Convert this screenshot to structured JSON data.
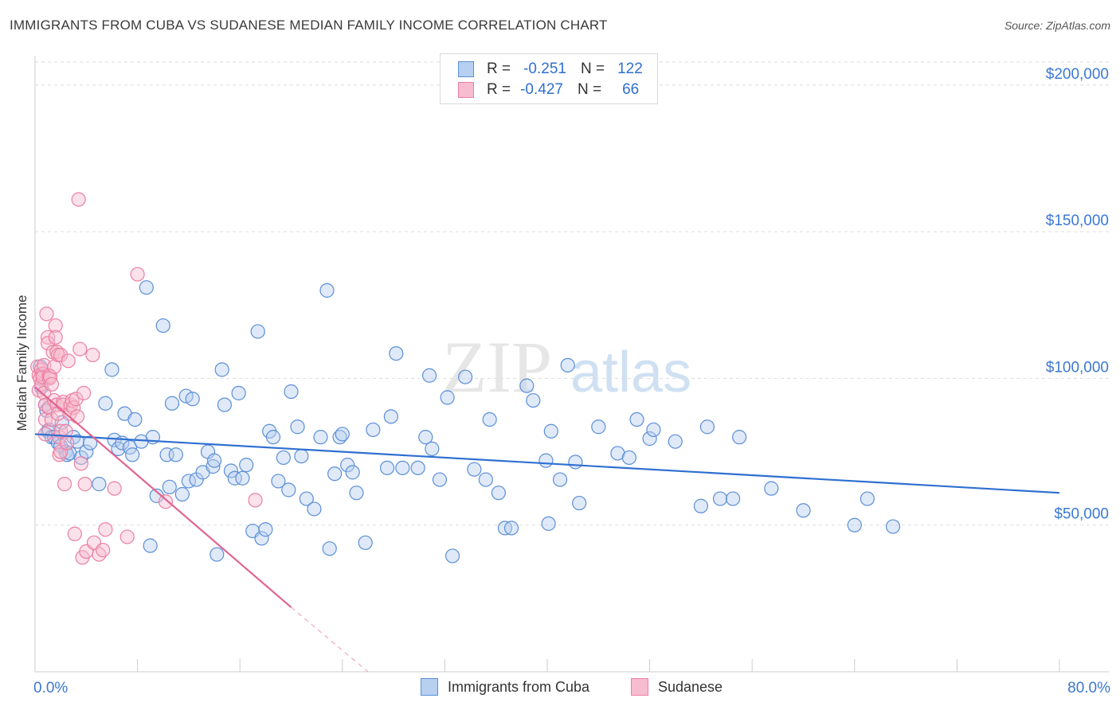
{
  "title": "IMMIGRANTS FROM CUBA VS SUDANESE MEDIAN FAMILY INCOME CORRELATION CHART",
  "source": "Source: ZipAtlas.com",
  "watermark": {
    "zip": "ZIP",
    "atlas": "atlas"
  },
  "legend": {
    "rows": [
      {
        "r_label": "R =",
        "r_value": "-0.251",
        "n_label": "N =",
        "n_value": "122",
        "color": "#5b8fd8"
      },
      {
        "r_label": "R =",
        "r_value": "-0.427",
        "n_label": "N =",
        "n_value": "66",
        "color": "#ec7fa3"
      }
    ]
  },
  "bottom_legend": {
    "cuba": "Immigrants from Cuba",
    "sudanese": "Sudanese"
  },
  "colors": {
    "cuba_fill": "#b7cff0",
    "cuba_stroke": "#5b8fd8",
    "cuba_line": "#2f6fd1",
    "sud_fill": "#f7bccf",
    "sud_stroke": "#ec7fa3",
    "sud_line": "#e0648e",
    "axis_label": "#3b78d4",
    "grid": "#dddddd"
  },
  "chart_data": {
    "type": "scatter",
    "title": "IMMIGRANTS FROM CUBA VS SUDANESE MEDIAN FAMILY INCOME CORRELATION CHART",
    "xlabel": "",
    "ylabel": "Median Family Income",
    "xlim": [
      0,
      80
    ],
    "ylim": [
      0,
      210000
    ],
    "x_tick_labels": [
      "0.0%",
      "80.0%"
    ],
    "y_ticks": [
      50000,
      100000,
      150000,
      200000
    ],
    "y_tick_labels": [
      "$50,000",
      "$100,000",
      "$150,000",
      "$200,000"
    ],
    "series": [
      {
        "name": "Immigrants from Cuba",
        "R": -0.251,
        "N": 122,
        "trend": {
          "x": [
            0,
            80
          ],
          "y": [
            81000,
            61000
          ]
        },
        "points": [
          [
            0.4,
            104000
          ],
          [
            0.5,
            97000
          ],
          [
            0.8,
            91000
          ],
          [
            0.9,
            89000
          ],
          [
            1.0,
            82000
          ],
          [
            1.1,
            82500
          ],
          [
            1.3,
            80000
          ],
          [
            1.5,
            80000
          ],
          [
            1.8,
            78000
          ],
          [
            2.0,
            77000
          ],
          [
            2.1,
            85000
          ],
          [
            2.4,
            75000
          ],
          [
            2.5,
            74000
          ],
          [
            2.7,
            74500
          ],
          [
            3.0,
            80000
          ],
          [
            3.3,
            78500
          ],
          [
            3.6,
            73000
          ],
          [
            4.0,
            75000
          ],
          [
            4.3,
            78000
          ],
          [
            5.0,
            64000
          ],
          [
            5.5,
            91500
          ],
          [
            6.0,
            103000
          ],
          [
            6.2,
            79000
          ],
          [
            6.5,
            76000
          ],
          [
            6.8,
            78000
          ],
          [
            7.0,
            88000
          ],
          [
            7.4,
            76500
          ],
          [
            7.6,
            74000
          ],
          [
            7.8,
            86000
          ],
          [
            8.3,
            78500
          ],
          [
            8.7,
            131000
          ],
          [
            9.0,
            43000
          ],
          [
            9.2,
            80000
          ],
          [
            9.5,
            60000
          ],
          [
            10.0,
            118000
          ],
          [
            10.3,
            74000
          ],
          [
            10.5,
            63000
          ],
          [
            10.7,
            91500
          ],
          [
            11.0,
            74000
          ],
          [
            11.5,
            60500
          ],
          [
            11.8,
            94000
          ],
          [
            12.0,
            65000
          ],
          [
            12.3,
            93000
          ],
          [
            12.6,
            65500
          ],
          [
            13.1,
            68000
          ],
          [
            13.5,
            75000
          ],
          [
            13.9,
            70000
          ],
          [
            14.0,
            72000
          ],
          [
            14.2,
            40000
          ],
          [
            14.6,
            103000
          ],
          [
            14.8,
            91000
          ],
          [
            15.3,
            68500
          ],
          [
            15.6,
            66000
          ],
          [
            15.9,
            95000
          ],
          [
            16.2,
            66000
          ],
          [
            16.5,
            70500
          ],
          [
            17.0,
            48000
          ],
          [
            17.4,
            116000
          ],
          [
            17.7,
            45500
          ],
          [
            18.0,
            48500
          ],
          [
            18.3,
            82000
          ],
          [
            18.6,
            80000
          ],
          [
            19.0,
            65000
          ],
          [
            19.4,
            73000
          ],
          [
            19.8,
            62000
          ],
          [
            20.0,
            95500
          ],
          [
            20.5,
            83500
          ],
          [
            20.8,
            73500
          ],
          [
            21.2,
            59000
          ],
          [
            21.8,
            55500
          ],
          [
            22.3,
            80000
          ],
          [
            22.8,
            130000
          ],
          [
            23.0,
            42000
          ],
          [
            23.4,
            67500
          ],
          [
            23.8,
            80000
          ],
          [
            24.0,
            81000
          ],
          [
            24.4,
            70500
          ],
          [
            24.8,
            68000
          ],
          [
            25.1,
            61000
          ],
          [
            25.8,
            44000
          ],
          [
            26.4,
            82500
          ],
          [
            27.5,
            69500
          ],
          [
            27.8,
            87000
          ],
          [
            28.2,
            108500
          ],
          [
            28.7,
            69500
          ],
          [
            29.9,
            69500
          ],
          [
            30.5,
            80000
          ],
          [
            30.8,
            101000
          ],
          [
            31.0,
            76000
          ],
          [
            31.6,
            65500
          ],
          [
            32.2,
            93500
          ],
          [
            32.6,
            39500
          ],
          [
            33.6,
            100500
          ],
          [
            34.3,
            69000
          ],
          [
            35.2,
            65500
          ],
          [
            35.5,
            86000
          ],
          [
            36.2,
            61000
          ],
          [
            36.7,
            49000
          ],
          [
            37.2,
            49000
          ],
          [
            38.4,
            97500
          ],
          [
            38.9,
            92500
          ],
          [
            39.9,
            72000
          ],
          [
            40.1,
            50500
          ],
          [
            40.3,
            82000
          ],
          [
            41.0,
            65500
          ],
          [
            41.6,
            104500
          ],
          [
            42.2,
            71500
          ],
          [
            42.5,
            57500
          ],
          [
            44.0,
            83500
          ],
          [
            45.5,
            74500
          ],
          [
            46.4,
            73000
          ],
          [
            47.0,
            86000
          ],
          [
            48.0,
            79500
          ],
          [
            48.3,
            82500
          ],
          [
            50.0,
            78500
          ],
          [
            52.0,
            56500
          ],
          [
            52.5,
            83500
          ],
          [
            53.5,
            59000
          ],
          [
            54.5,
            59000
          ],
          [
            55.0,
            80000
          ],
          [
            57.5,
            62500
          ],
          [
            60.0,
            55000
          ],
          [
            64.0,
            50000
          ],
          [
            65.0,
            59000
          ],
          [
            67.0,
            49500
          ]
        ]
      },
      {
        "name": "Sudanese",
        "R": -0.427,
        "N": 66,
        "trend": {
          "x": [
            0,
            20
          ],
          "y": [
            97000,
            22000
          ]
        },
        "trend_dashed": {
          "x": [
            20,
            26
          ],
          "y": [
            22000,
            0
          ]
        },
        "points": [
          [
            0.2,
            104000
          ],
          [
            0.3,
            101000
          ],
          [
            0.3,
            96000
          ],
          [
            0.4,
            100000
          ],
          [
            0.5,
            103000
          ],
          [
            0.5,
            98000
          ],
          [
            0.6,
            101500
          ],
          [
            0.6,
            100500
          ],
          [
            0.7,
            104500
          ],
          [
            0.7,
            95000
          ],
          [
            0.8,
            91000
          ],
          [
            0.8,
            86000
          ],
          [
            0.8,
            81000
          ],
          [
            0.9,
            122000
          ],
          [
            1.0,
            114000
          ],
          [
            1.0,
            112000
          ],
          [
            1.1,
            101000
          ],
          [
            1.1,
            100000
          ],
          [
            1.1,
            90000
          ],
          [
            1.2,
            100500
          ],
          [
            1.3,
            98000
          ],
          [
            1.3,
            86000
          ],
          [
            1.4,
            109000
          ],
          [
            1.5,
            104000
          ],
          [
            1.5,
            92500
          ],
          [
            1.6,
            118000
          ],
          [
            1.6,
            114000
          ],
          [
            1.7,
            109000
          ],
          [
            1.7,
            91000
          ],
          [
            1.8,
            108000
          ],
          [
            1.8,
            88000
          ],
          [
            1.9,
            80000
          ],
          [
            1.9,
            74000
          ],
          [
            2.0,
            108000
          ],
          [
            2.0,
            75000
          ],
          [
            2.0,
            82000
          ],
          [
            2.2,
            92000
          ],
          [
            2.2,
            91000
          ],
          [
            2.3,
            64000
          ],
          [
            2.4,
            82000
          ],
          [
            2.5,
            78000
          ],
          [
            2.6,
            106000
          ],
          [
            2.7,
            88000
          ],
          [
            2.8,
            91000
          ],
          [
            2.9,
            92500
          ],
          [
            3.0,
            90000
          ],
          [
            3.1,
            47000
          ],
          [
            3.2,
            93000
          ],
          [
            3.3,
            87000
          ],
          [
            3.4,
            161000
          ],
          [
            3.5,
            110000
          ],
          [
            3.6,
            71000
          ],
          [
            3.7,
            39000
          ],
          [
            3.8,
            95000
          ],
          [
            4.0,
            41000
          ],
          [
            4.5,
            108000
          ],
          [
            4.6,
            44000
          ],
          [
            5.0,
            40000
          ],
          [
            5.3,
            41500
          ],
          [
            5.5,
            48500
          ],
          [
            6.2,
            62500
          ],
          [
            7.2,
            46000
          ],
          [
            8.0,
            135500
          ],
          [
            10.2,
            58000
          ],
          [
            17.2,
            58500
          ],
          [
            3.9,
            64000
          ]
        ]
      }
    ]
  }
}
